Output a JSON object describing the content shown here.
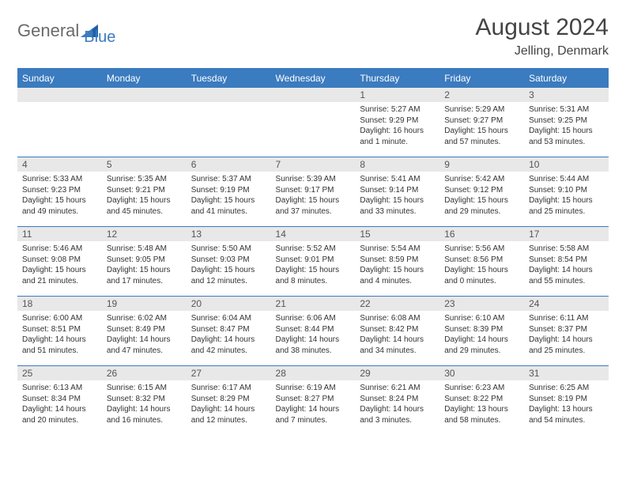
{
  "brand": {
    "part1": "General",
    "part2": "Blue"
  },
  "title": "August 2024",
  "location": "Jelling, Denmark",
  "colors": {
    "header_bg": "#3b7bbf",
    "header_text": "#ffffff",
    "daynum_bg": "#e8e8e8",
    "border": "#3b7bbf",
    "body_text": "#333333",
    "logo_gray": "#6a6a6a",
    "logo_blue": "#3b7bbf"
  },
  "dayNames": [
    "Sunday",
    "Monday",
    "Tuesday",
    "Wednesday",
    "Thursday",
    "Friday",
    "Saturday"
  ],
  "startOffset": 4,
  "days": [
    {
      "n": 1,
      "sunrise": "5:27 AM",
      "sunset": "9:29 PM",
      "daylight": "16 hours and 1 minute."
    },
    {
      "n": 2,
      "sunrise": "5:29 AM",
      "sunset": "9:27 PM",
      "daylight": "15 hours and 57 minutes."
    },
    {
      "n": 3,
      "sunrise": "5:31 AM",
      "sunset": "9:25 PM",
      "daylight": "15 hours and 53 minutes."
    },
    {
      "n": 4,
      "sunrise": "5:33 AM",
      "sunset": "9:23 PM",
      "daylight": "15 hours and 49 minutes."
    },
    {
      "n": 5,
      "sunrise": "5:35 AM",
      "sunset": "9:21 PM",
      "daylight": "15 hours and 45 minutes."
    },
    {
      "n": 6,
      "sunrise": "5:37 AM",
      "sunset": "9:19 PM",
      "daylight": "15 hours and 41 minutes."
    },
    {
      "n": 7,
      "sunrise": "5:39 AM",
      "sunset": "9:17 PM",
      "daylight": "15 hours and 37 minutes."
    },
    {
      "n": 8,
      "sunrise": "5:41 AM",
      "sunset": "9:14 PM",
      "daylight": "15 hours and 33 minutes."
    },
    {
      "n": 9,
      "sunrise": "5:42 AM",
      "sunset": "9:12 PM",
      "daylight": "15 hours and 29 minutes."
    },
    {
      "n": 10,
      "sunrise": "5:44 AM",
      "sunset": "9:10 PM",
      "daylight": "15 hours and 25 minutes."
    },
    {
      "n": 11,
      "sunrise": "5:46 AM",
      "sunset": "9:08 PM",
      "daylight": "15 hours and 21 minutes."
    },
    {
      "n": 12,
      "sunrise": "5:48 AM",
      "sunset": "9:05 PM",
      "daylight": "15 hours and 17 minutes."
    },
    {
      "n": 13,
      "sunrise": "5:50 AM",
      "sunset": "9:03 PM",
      "daylight": "15 hours and 12 minutes."
    },
    {
      "n": 14,
      "sunrise": "5:52 AM",
      "sunset": "9:01 PM",
      "daylight": "15 hours and 8 minutes."
    },
    {
      "n": 15,
      "sunrise": "5:54 AM",
      "sunset": "8:59 PM",
      "daylight": "15 hours and 4 minutes."
    },
    {
      "n": 16,
      "sunrise": "5:56 AM",
      "sunset": "8:56 PM",
      "daylight": "15 hours and 0 minutes."
    },
    {
      "n": 17,
      "sunrise": "5:58 AM",
      "sunset": "8:54 PM",
      "daylight": "14 hours and 55 minutes."
    },
    {
      "n": 18,
      "sunrise": "6:00 AM",
      "sunset": "8:51 PM",
      "daylight": "14 hours and 51 minutes."
    },
    {
      "n": 19,
      "sunrise": "6:02 AM",
      "sunset": "8:49 PM",
      "daylight": "14 hours and 47 minutes."
    },
    {
      "n": 20,
      "sunrise": "6:04 AM",
      "sunset": "8:47 PM",
      "daylight": "14 hours and 42 minutes."
    },
    {
      "n": 21,
      "sunrise": "6:06 AM",
      "sunset": "8:44 PM",
      "daylight": "14 hours and 38 minutes."
    },
    {
      "n": 22,
      "sunrise": "6:08 AM",
      "sunset": "8:42 PM",
      "daylight": "14 hours and 34 minutes."
    },
    {
      "n": 23,
      "sunrise": "6:10 AM",
      "sunset": "8:39 PM",
      "daylight": "14 hours and 29 minutes."
    },
    {
      "n": 24,
      "sunrise": "6:11 AM",
      "sunset": "8:37 PM",
      "daylight": "14 hours and 25 minutes."
    },
    {
      "n": 25,
      "sunrise": "6:13 AM",
      "sunset": "8:34 PM",
      "daylight": "14 hours and 20 minutes."
    },
    {
      "n": 26,
      "sunrise": "6:15 AM",
      "sunset": "8:32 PM",
      "daylight": "14 hours and 16 minutes."
    },
    {
      "n": 27,
      "sunrise": "6:17 AM",
      "sunset": "8:29 PM",
      "daylight": "14 hours and 12 minutes."
    },
    {
      "n": 28,
      "sunrise": "6:19 AM",
      "sunset": "8:27 PM",
      "daylight": "14 hours and 7 minutes."
    },
    {
      "n": 29,
      "sunrise": "6:21 AM",
      "sunset": "8:24 PM",
      "daylight": "14 hours and 3 minutes."
    },
    {
      "n": 30,
      "sunrise": "6:23 AM",
      "sunset": "8:22 PM",
      "daylight": "13 hours and 58 minutes."
    },
    {
      "n": 31,
      "sunrise": "6:25 AM",
      "sunset": "8:19 PM",
      "daylight": "13 hours and 54 minutes."
    }
  ],
  "labels": {
    "sunrise": "Sunrise:",
    "sunset": "Sunset:",
    "daylight": "Daylight:"
  }
}
